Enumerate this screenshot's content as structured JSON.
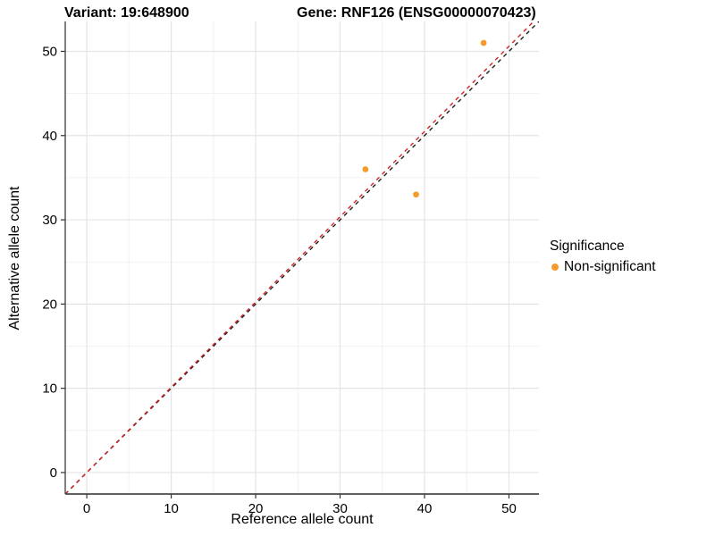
{
  "chart_data": {
    "type": "scatter",
    "title_left": "Variant: 19:648900",
    "title_right": "Gene: RNF126 (ENSG00000070423)",
    "xlabel": "Reference allele count",
    "ylabel": "Alternative allele count",
    "xlim": [
      -2.55,
      53.55
    ],
    "ylim": [
      -2.55,
      53.55
    ],
    "x_major_ticks": [
      0,
      10,
      20,
      30,
      40,
      50
    ],
    "y_major_ticks": [
      0,
      10,
      20,
      30,
      40,
      50
    ],
    "x_minor_ticks": [
      5,
      15,
      25,
      35,
      45
    ],
    "y_minor_ticks": [
      5,
      15,
      25,
      35,
      45
    ],
    "grid": true,
    "legend_position": "right",
    "series": [
      {
        "name": "Non-significant",
        "color": "#F89B2D",
        "points": [
          [
            33,
            36
          ],
          [
            39,
            33
          ],
          [
            47,
            51
          ]
        ]
      }
    ],
    "lines": [
      {
        "name": "identity",
        "slope": 1.0,
        "intercept": 0,
        "color": "#1C1C1C",
        "style": "dashed"
      },
      {
        "name": "expected-ratio",
        "slope": 1.012,
        "intercept": 0,
        "color": "#D62020",
        "style": "dashed"
      }
    ],
    "legend": {
      "title": "Significance",
      "items": [
        {
          "label": "Non-significant",
          "color": "#F89B2D"
        }
      ]
    },
    "colors": {
      "grid_major": "#E4E4E4",
      "grid_minor": "#F1F1F1",
      "axis_line": "#4A4A4A",
      "tick_mark": "#333333",
      "text": "#000000"
    }
  }
}
